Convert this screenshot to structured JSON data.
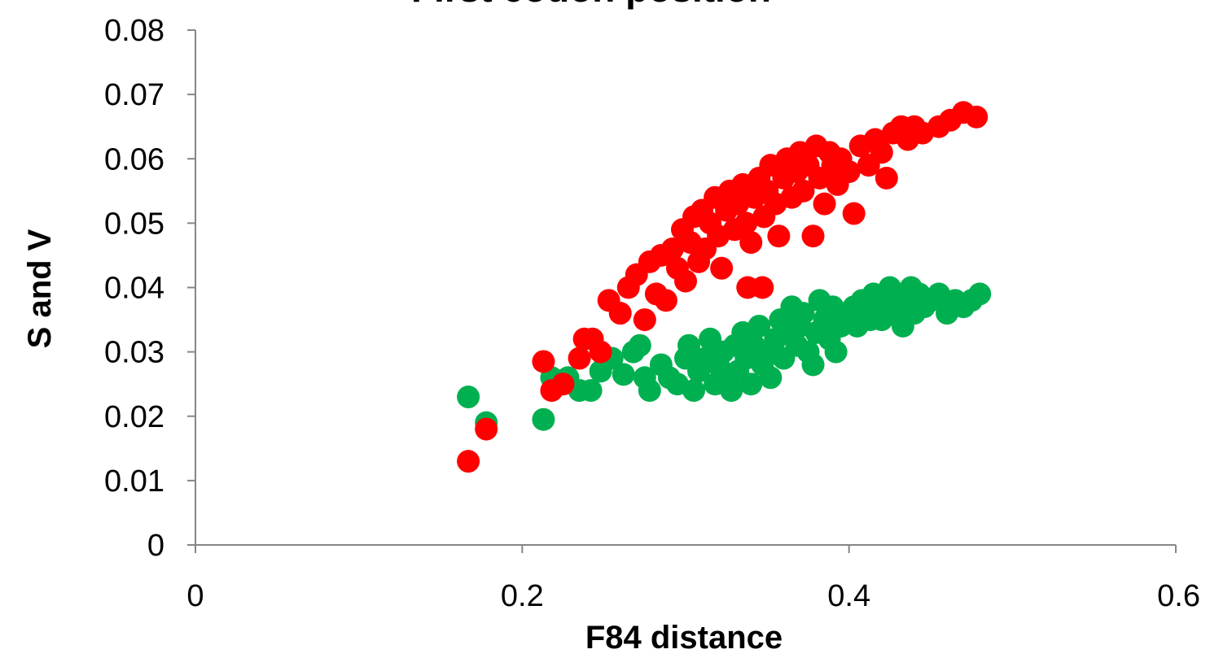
{
  "chart_data": {
    "type": "scatter",
    "title": "First codon position",
    "xlabel": "F84 distance",
    "ylabel": "S and V",
    "xlim": [
      0,
      0.6
    ],
    "ylim": [
      0,
      0.08
    ],
    "x_ticks": [
      "0",
      "0.2",
      "0.4",
      "0.6"
    ],
    "y_ticks": [
      "0",
      "0.01",
      "0.02",
      "0.03",
      "0.04",
      "0.05",
      "0.06",
      "0.07",
      "0.08"
    ],
    "grid": false,
    "legend": "none",
    "series": [
      {
        "color": "#00b050",
        "points": [
          [
            0.167,
            0.023
          ],
          [
            0.178,
            0.019
          ],
          [
            0.213,
            0.0195
          ],
          [
            0.218,
            0.026
          ],
          [
            0.228,
            0.026
          ],
          [
            0.235,
            0.024
          ],
          [
            0.242,
            0.024
          ],
          [
            0.248,
            0.027
          ],
          [
            0.255,
            0.029
          ],
          [
            0.262,
            0.0265
          ],
          [
            0.268,
            0.03
          ],
          [
            0.272,
            0.031
          ],
          [
            0.275,
            0.026
          ],
          [
            0.278,
            0.024
          ],
          [
            0.285,
            0.028
          ],
          [
            0.29,
            0.026
          ],
          [
            0.295,
            0.025
          ],
          [
            0.3,
            0.029
          ],
          [
            0.302,
            0.031
          ],
          [
            0.305,
            0.024
          ],
          [
            0.308,
            0.027
          ],
          [
            0.312,
            0.029
          ],
          [
            0.315,
            0.032
          ],
          [
            0.318,
            0.025
          ],
          [
            0.32,
            0.028
          ],
          [
            0.323,
            0.03
          ],
          [
            0.325,
            0.026
          ],
          [
            0.328,
            0.024
          ],
          [
            0.33,
            0.031
          ],
          [
            0.332,
            0.027
          ],
          [
            0.335,
            0.033
          ],
          [
            0.337,
            0.029
          ],
          [
            0.34,
            0.025
          ],
          [
            0.342,
            0.031
          ],
          [
            0.345,
            0.034
          ],
          [
            0.347,
            0.028
          ],
          [
            0.35,
            0.03
          ],
          [
            0.352,
            0.026
          ],
          [
            0.355,
            0.032
          ],
          [
            0.358,
            0.035
          ],
          [
            0.36,
            0.029
          ],
          [
            0.362,
            0.033
          ],
          [
            0.365,
            0.037
          ],
          [
            0.368,
            0.031
          ],
          [
            0.37,
            0.034
          ],
          [
            0.372,
            0.036
          ],
          [
            0.375,
            0.03
          ],
          [
            0.378,
            0.028
          ],
          [
            0.38,
            0.033
          ],
          [
            0.382,
            0.038
          ],
          [
            0.385,
            0.035
          ],
          [
            0.388,
            0.032
          ],
          [
            0.39,
            0.037
          ],
          [
            0.392,
            0.03
          ],
          [
            0.395,
            0.034
          ],
          [
            0.398,
            0.036
          ],
          [
            0.4,
            0.035
          ],
          [
            0.403,
            0.037
          ],
          [
            0.405,
            0.034
          ],
          [
            0.408,
            0.038
          ],
          [
            0.41,
            0.036
          ],
          [
            0.413,
            0.035
          ],
          [
            0.415,
            0.039
          ],
          [
            0.418,
            0.037
          ],
          [
            0.42,
            0.035
          ],
          [
            0.423,
            0.038
          ],
          [
            0.425,
            0.04
          ],
          [
            0.428,
            0.036
          ],
          [
            0.43,
            0.039
          ],
          [
            0.433,
            0.034
          ],
          [
            0.435,
            0.037
          ],
          [
            0.438,
            0.04
          ],
          [
            0.44,
            0.036
          ],
          [
            0.443,
            0.039
          ],
          [
            0.446,
            0.037
          ],
          [
            0.45,
            0.038
          ],
          [
            0.455,
            0.039
          ],
          [
            0.46,
            0.036
          ],
          [
            0.465,
            0.038
          ],
          [
            0.47,
            0.037
          ],
          [
            0.475,
            0.038
          ],
          [
            0.48,
            0.039
          ]
        ]
      },
      {
        "color": "#ff0000",
        "points": [
          [
            0.167,
            0.013
          ],
          [
            0.178,
            0.018
          ],
          [
            0.213,
            0.0285
          ],
          [
            0.218,
            0.024
          ],
          [
            0.225,
            0.025
          ],
          [
            0.235,
            0.029
          ],
          [
            0.238,
            0.032
          ],
          [
            0.243,
            0.032
          ],
          [
            0.248,
            0.03
          ],
          [
            0.253,
            0.038
          ],
          [
            0.26,
            0.036
          ],
          [
            0.265,
            0.04
          ],
          [
            0.27,
            0.042
          ],
          [
            0.275,
            0.035
          ],
          [
            0.278,
            0.044
          ],
          [
            0.282,
            0.039
          ],
          [
            0.285,
            0.045
          ],
          [
            0.288,
            0.038
          ],
          [
            0.292,
            0.046
          ],
          [
            0.295,
            0.043
          ],
          [
            0.298,
            0.049
          ],
          [
            0.3,
            0.041
          ],
          [
            0.303,
            0.047
          ],
          [
            0.305,
            0.051
          ],
          [
            0.308,
            0.044
          ],
          [
            0.31,
            0.052
          ],
          [
            0.312,
            0.046
          ],
          [
            0.315,
            0.05
          ],
          [
            0.318,
            0.054
          ],
          [
            0.32,
            0.048
          ],
          [
            0.322,
            0.043
          ],
          [
            0.325,
            0.052
          ],
          [
            0.327,
            0.055
          ],
          [
            0.33,
            0.049
          ],
          [
            0.332,
            0.053
          ],
          [
            0.335,
            0.056
          ],
          [
            0.337,
            0.05
          ],
          [
            0.338,
            0.04
          ],
          [
            0.34,
            0.047
          ],
          [
            0.342,
            0.054
          ],
          [
            0.345,
            0.057
          ],
          [
            0.347,
            0.04
          ],
          [
            0.348,
            0.051
          ],
          [
            0.35,
            0.055
          ],
          [
            0.352,
            0.059
          ],
          [
            0.355,
            0.053
          ],
          [
            0.357,
            0.048
          ],
          [
            0.36,
            0.057
          ],
          [
            0.362,
            0.06
          ],
          [
            0.365,
            0.054
          ],
          [
            0.368,
            0.058
          ],
          [
            0.37,
            0.061
          ],
          [
            0.372,
            0.055
          ],
          [
            0.375,
            0.059
          ],
          [
            0.378,
            0.048
          ],
          [
            0.38,
            0.062
          ],
          [
            0.382,
            0.057
          ],
          [
            0.385,
            0.053
          ],
          [
            0.388,
            0.061
          ],
          [
            0.39,
            0.059
          ],
          [
            0.393,
            0.056
          ],
          [
            0.395,
            0.06
          ],
          [
            0.4,
            0.058
          ],
          [
            0.403,
            0.0515
          ],
          [
            0.407,
            0.062
          ],
          [
            0.412,
            0.059
          ],
          [
            0.416,
            0.063
          ],
          [
            0.42,
            0.061
          ],
          [
            0.423,
            0.057
          ],
          [
            0.427,
            0.064
          ],
          [
            0.432,
            0.065
          ],
          [
            0.436,
            0.063
          ],
          [
            0.44,
            0.065
          ],
          [
            0.445,
            0.064
          ],
          [
            0.455,
            0.065
          ],
          [
            0.462,
            0.066
          ],
          [
            0.47,
            0.0672
          ],
          [
            0.478,
            0.0665
          ]
        ]
      }
    ]
  }
}
